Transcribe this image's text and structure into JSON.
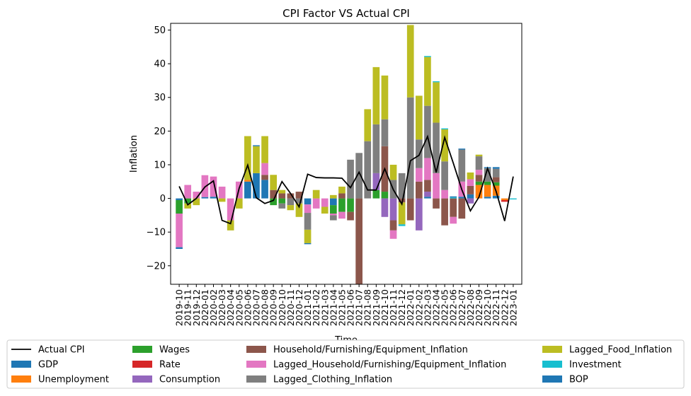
{
  "chart_data": {
    "type": "bar",
    "stacked": true,
    "title": "CPI Factor VS Actual CPI",
    "xlabel": "Time",
    "ylabel": "Inflation",
    "ylim": [
      -25.5,
      52
    ],
    "yticks": [
      -20,
      -10,
      0,
      10,
      20,
      30,
      40,
      50
    ],
    "grid": false,
    "legend_position": "bottom",
    "categories": [
      "2019-10",
      "2019-11",
      "2019-12",
      "2020-01",
      "2020-02",
      "2020-03",
      "2020-04",
      "2020-05",
      "2020-06",
      "2020-07",
      "2020-08",
      "2020-09",
      "2020-10",
      "2020-11",
      "2020-12",
      "2021-01",
      "2021-02",
      "2021-03",
      "2021-04",
      "2021-05",
      "2021-06",
      "2021-07",
      "2021-08",
      "2021-09",
      "2021-10",
      "2021-11",
      "2021-12",
      "2022-01",
      "2022-02",
      "2022-03",
      "2022-04",
      "2022-05",
      "2022-06",
      "2022-07",
      "2022-08",
      "2022-09",
      "2022-10",
      "2022-11",
      "2022-12",
      "2023-01"
    ],
    "line": {
      "name": "Actual CPI",
      "color": "#000000",
      "values": [
        3.6,
        -1.9,
        0,
        3.4,
        5.2,
        -6.5,
        -7.5,
        3,
        9.9,
        0.2,
        -1.5,
        -0.6,
        5,
        1.5,
        -2.5,
        7.2,
        6.2,
        6.1,
        6.1,
        6,
        3.2,
        7.8,
        2.5,
        2.5,
        8.8,
        2.6,
        -1.7,
        11.2,
        12.8,
        18.4,
        7.7,
        18.1,
        10.5,
        2.6,
        -3.7,
        0.4,
        8.9,
        2.1,
        -6.7,
        6.5
      ]
    },
    "series": [
      {
        "name": "GDP",
        "color": "#1f77b4",
        "values": [
          -0.5,
          0,
          0,
          0.4,
          0.5,
          0,
          0,
          0,
          5,
          7.5,
          5.5,
          0,
          0,
          0,
          0,
          -1.8,
          0,
          0,
          -2,
          0,
          0,
          0,
          0,
          0,
          0,
          0,
          0,
          0,
          0,
          0.5,
          0,
          0,
          0,
          0.5,
          1.2,
          0,
          0.5,
          0.8,
          0,
          0
        ]
      },
      {
        "name": "Unemployment",
        "color": "#ff7f0e",
        "values": [
          0,
          0,
          0,
          0,
          0,
          0,
          0,
          0,
          0.5,
          0,
          0,
          0,
          0,
          0,
          0,
          0,
          0,
          0,
          0,
          0,
          0,
          0,
          0,
          0,
          0,
          0,
          0,
          0,
          0,
          0,
          0,
          0,
          0,
          0,
          0,
          4,
          3.5,
          3,
          -0.5,
          0
        ]
      },
      {
        "name": "Wages",
        "color": "#2ca02c",
        "values": [
          -4,
          -1.5,
          0,
          0,
          0,
          0,
          0,
          0,
          0,
          0,
          0,
          -2,
          -1.5,
          0,
          0,
          0,
          0,
          0,
          -2.5,
          -4,
          -4,
          0,
          0,
          2.5,
          2,
          0,
          0,
          0,
          0,
          0,
          0,
          0,
          0,
          0,
          0,
          1,
          1,
          1,
          0,
          0
        ]
      },
      {
        "name": "Rate",
        "color": "#d62728",
        "values": [
          0,
          0,
          0,
          0,
          0,
          0,
          0,
          0,
          0,
          0,
          0,
          0,
          0,
          0,
          0,
          0,
          0,
          0,
          0,
          0,
          0,
          0,
          0,
          0,
          0,
          0,
          0,
          0,
          0,
          0,
          0,
          0,
          0,
          0,
          0,
          0,
          0,
          0,
          -0.5,
          0
        ]
      },
      {
        "name": "Consumption",
        "color": "#9467bd",
        "values": [
          0,
          0,
          0,
          0,
          0,
          0,
          0,
          0,
          0,
          0,
          0,
          0,
          0,
          0,
          0,
          0,
          0,
          0,
          0,
          0,
          0,
          0,
          0,
          5,
          -5.5,
          -6.5,
          0,
          0,
          -9.5,
          1.5,
          0,
          0,
          0,
          0,
          -1.5,
          0,
          0,
          0,
          0,
          0
        ]
      },
      {
        "name": "Household/Furnishing/Equipment_Inflation",
        "color": "#8c564b",
        "values": [
          0,
          0,
          0,
          0,
          0,
          0,
          0,
          0,
          0,
          0,
          1.5,
          2.5,
          1.5,
          1.5,
          2,
          0,
          0,
          0,
          0,
          1.5,
          -2.5,
          -27,
          0,
          0,
          13.5,
          -3,
          -1.2,
          -6.5,
          5,
          3.5,
          -3,
          -8,
          -5.5,
          -6,
          2.5,
          2,
          0,
          1.5,
          0,
          0
        ]
      },
      {
        "name": "Lagged_Household/Furnishing/Equipment_Inflation",
        "color": "#e377c2",
        "values": [
          -10,
          4,
          2,
          6.5,
          6,
          3.5,
          -6.5,
          5,
          0,
          0,
          3.5,
          0,
          0,
          0,
          0,
          -2.5,
          -3,
          -2.5,
          -0.5,
          -2,
          0,
          0,
          0,
          0,
          0,
          -2.5,
          0,
          0,
          4,
          6.5,
          7.5,
          2.5,
          -2,
          4.5,
          2,
          1.5,
          0,
          0,
          0,
          0
        ]
      },
      {
        "name": "Lagged_Clothing_Inflation",
        "color": "#7f7f7f",
        "values": [
          0,
          0,
          0,
          0,
          0,
          0,
          0,
          0,
          0,
          0,
          0,
          0,
          -1.5,
          -2,
          -1.5,
          -5,
          0,
          0,
          -1.5,
          0,
          11.5,
          13.5,
          17,
          14.5,
          8,
          5.5,
          7.5,
          30,
          8.5,
          15.5,
          15,
          8.5,
          0,
          9.5,
          0,
          4,
          4,
          2.5,
          0,
          0
        ]
      },
      {
        "name": "Lagged_Food_Inflation",
        "color": "#bcbd22",
        "values": [
          0,
          -1.5,
          -2,
          0,
          0,
          -1,
          -3,
          -3,
          13,
          8,
          8,
          4.5,
          1,
          -1.5,
          -4,
          -4,
          2.5,
          -2,
          1,
          2,
          0,
          0,
          9.5,
          17,
          13,
          4.5,
          -6.5,
          21.5,
          13,
          14.5,
          12,
          9.5,
          0,
          0,
          2,
          0.5,
          0,
          0,
          0,
          0
        ]
      },
      {
        "name": "Investment",
        "color": "#17becf",
        "values": [
          0,
          0,
          0,
          0,
          0,
          0,
          0,
          0,
          0,
          0,
          0,
          0,
          0,
          0,
          0,
          0,
          0,
          0,
          0,
          0,
          0,
          0,
          0,
          0,
          0,
          0,
          -0.5,
          0,
          0,
          0.3,
          0.3,
          0.3,
          0.3,
          0,
          0,
          0,
          0,
          0,
          0,
          -0.3
        ]
      },
      {
        "name": "BOP",
        "color": "#1f77b4",
        "values": [
          -0.5,
          0,
          0,
          0,
          0,
          0,
          0,
          0,
          0,
          0.3,
          0,
          0,
          0,
          0,
          0,
          -0.3,
          0,
          0,
          0,
          0,
          0,
          0,
          0,
          0,
          0,
          0,
          0,
          0,
          0,
          0,
          0,
          0,
          0.3,
          0.3,
          0,
          0,
          0.3,
          0.5,
          0,
          0
        ]
      }
    ]
  }
}
